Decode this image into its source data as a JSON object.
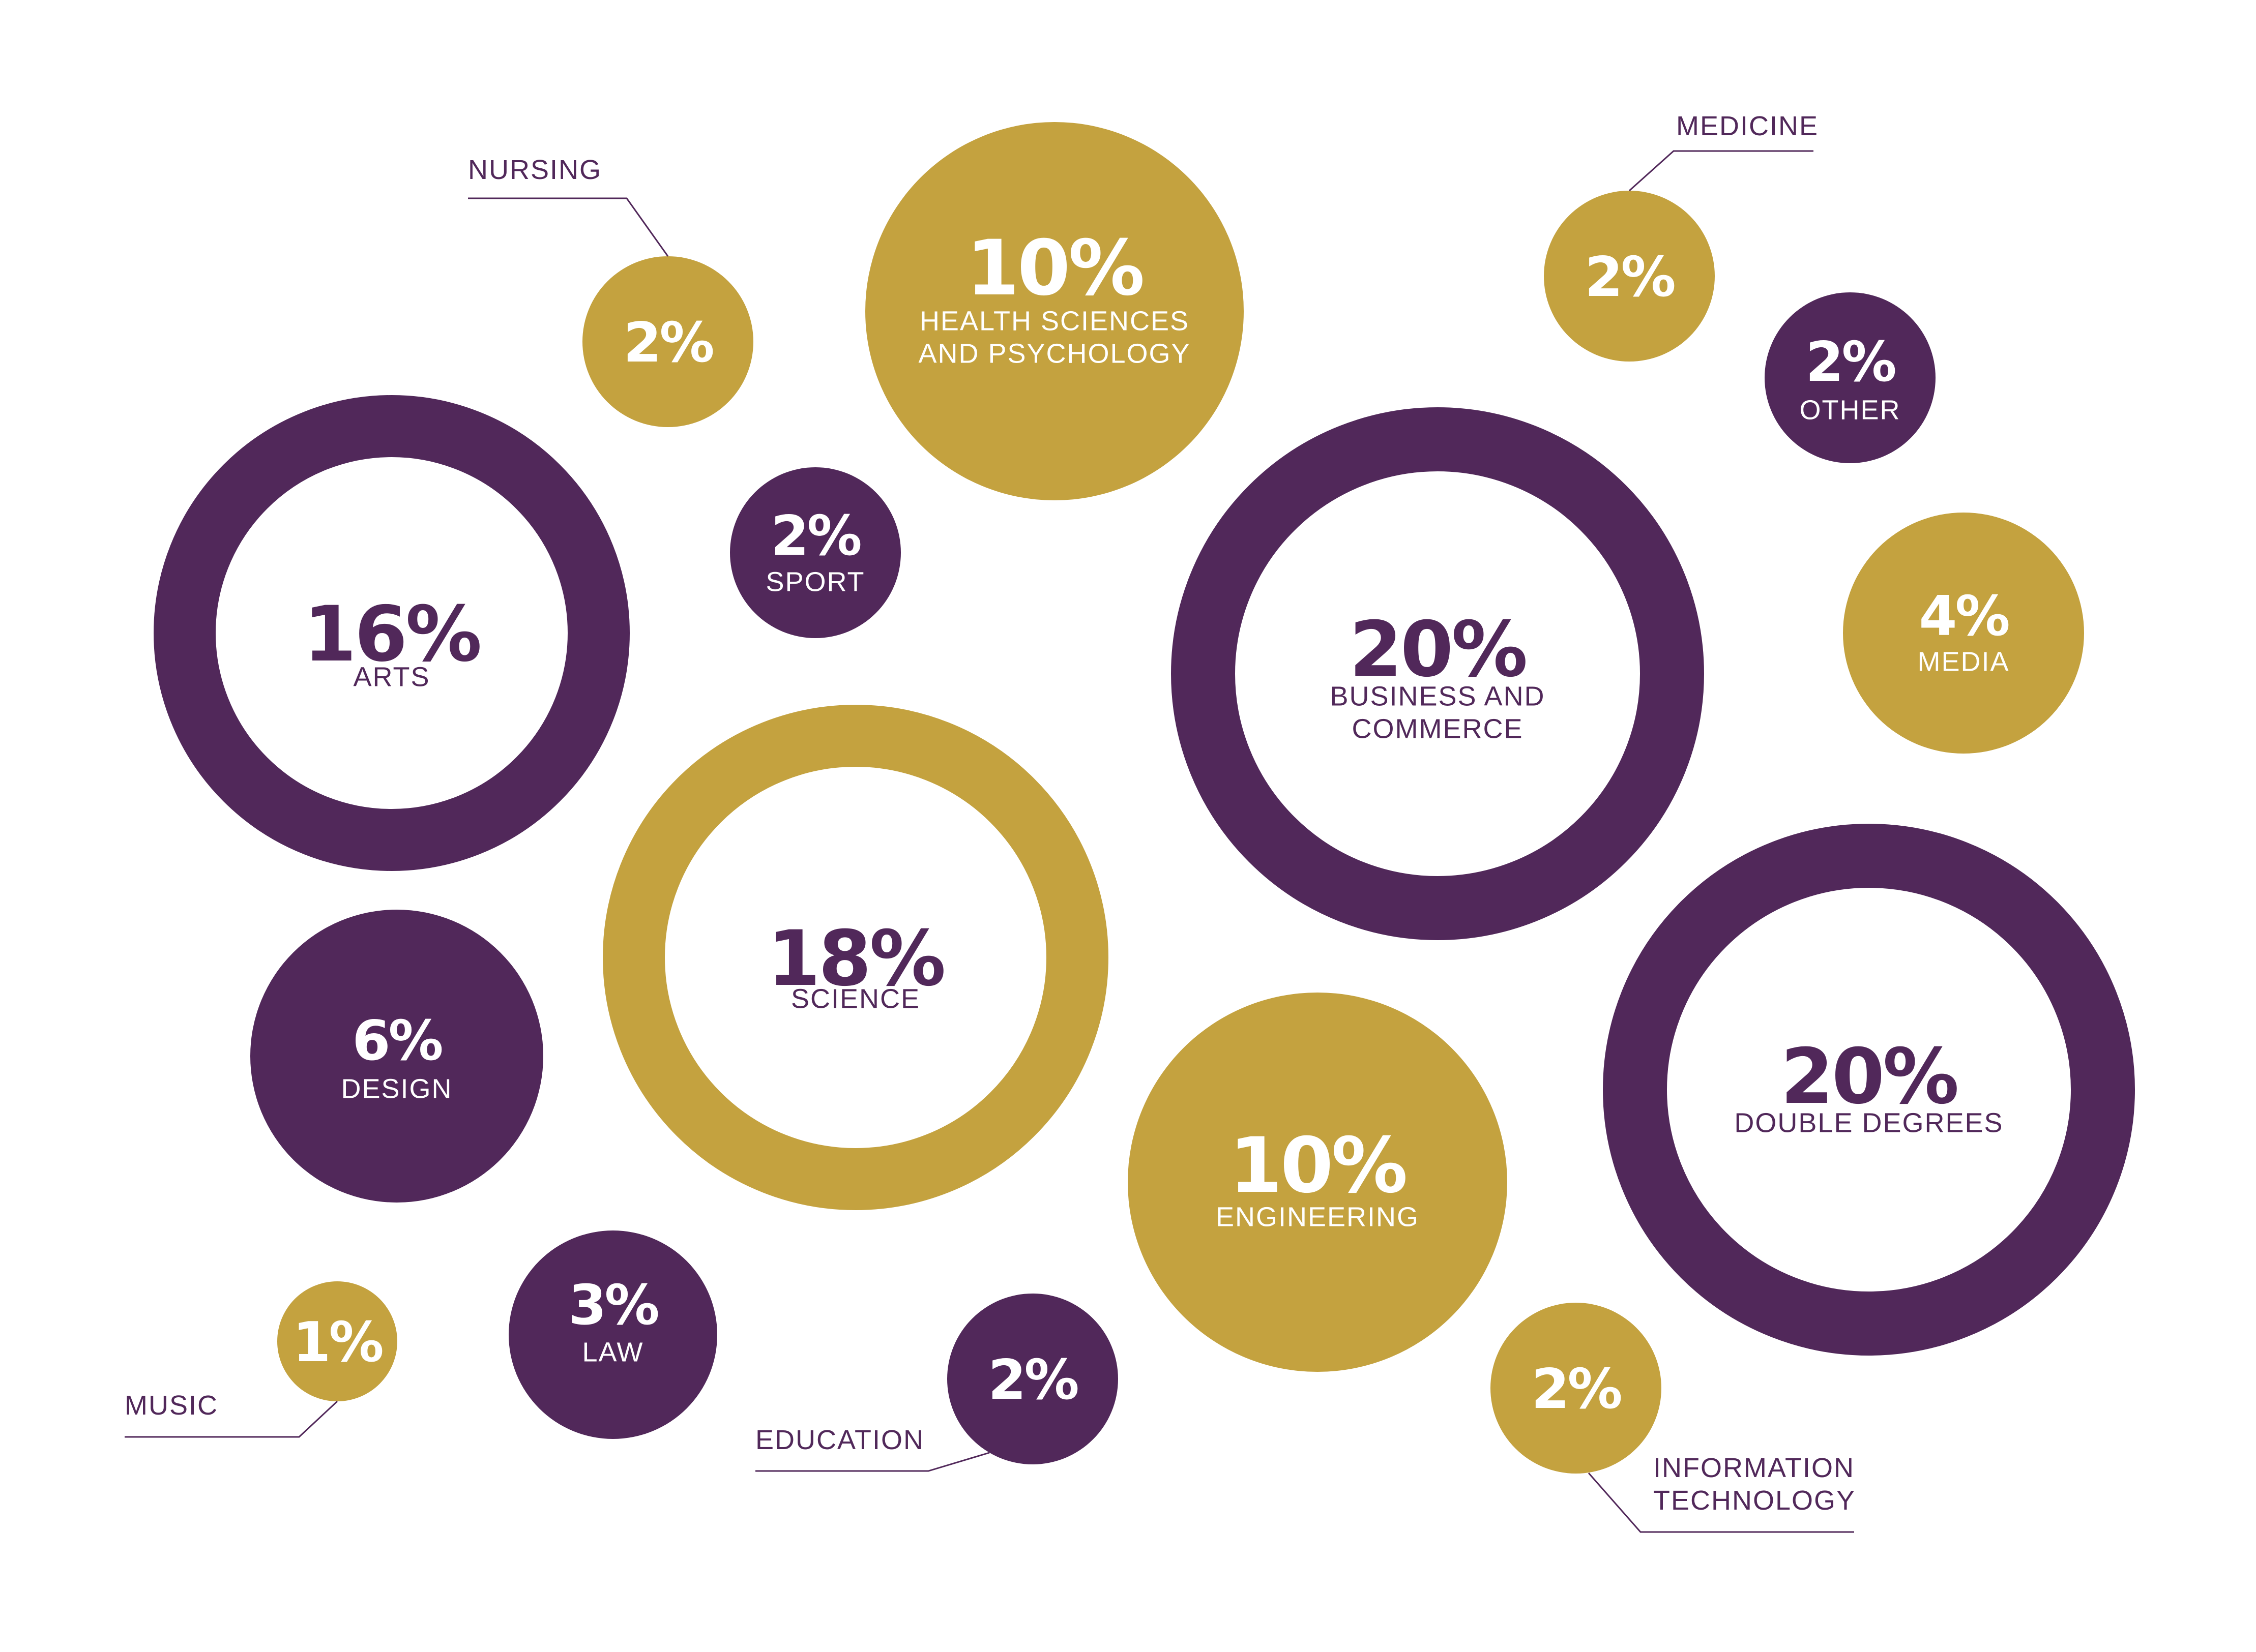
{
  "colors": {
    "purple": "#51285a",
    "gold": "#c4a23f",
    "white": "#ffffff",
    "background": "#ffffff"
  },
  "chart_data": {
    "type": "bubble",
    "unit": "%",
    "items": [
      {
        "value": 16,
        "label": "%",
        "category": "ARTS",
        "color": "purple",
        "style": "ring",
        "label_position": "inside"
      },
      {
        "value": 18,
        "label": "%",
        "category": "SCIENCE",
        "color": "gold",
        "style": "ring",
        "label_position": "inside"
      },
      {
        "value": 20,
        "label": "%",
        "category": "BUSINESS AND COMMERCE",
        "color": "purple",
        "style": "ring",
        "label_position": "inside"
      },
      {
        "value": 20,
        "label": "%",
        "category": "DOUBLE DEGREES",
        "color": "purple",
        "style": "ring",
        "label_position": "inside"
      },
      {
        "value": 10,
        "label": "%",
        "category": "HEALTH SCIENCES AND PSYCHOLOGY",
        "color": "gold",
        "style": "disc",
        "label_position": "inside"
      },
      {
        "value": 10,
        "label": "%",
        "category": "ENGINEERING",
        "color": "gold",
        "style": "disc",
        "label_position": "inside"
      },
      {
        "value": 6,
        "label": "%",
        "category": "DESIGN",
        "color": "purple",
        "style": "disc",
        "label_position": "inside"
      },
      {
        "value": 4,
        "label": "%",
        "category": "MEDIA",
        "color": "gold",
        "style": "disc",
        "label_position": "inside"
      },
      {
        "value": 3,
        "label": "%",
        "category": "LAW",
        "color": "purple",
        "style": "disc",
        "label_position": "inside"
      },
      {
        "value": 2,
        "label": "%",
        "category": "SPORT",
        "color": "purple",
        "style": "disc",
        "label_position": "inside"
      },
      {
        "value": 2,
        "label": "%",
        "category": "OTHER",
        "color": "purple",
        "style": "disc",
        "label_position": "inside"
      },
      {
        "value": 2,
        "label": "%",
        "category": "NURSING",
        "color": "gold",
        "style": "disc",
        "label_position": "callout"
      },
      {
        "value": 2,
        "label": "%",
        "category": "MEDICINE",
        "color": "gold",
        "style": "disc",
        "label_position": "callout"
      },
      {
        "value": 2,
        "label": "%",
        "category": "EDUCATION",
        "color": "purple",
        "style": "disc",
        "label_position": "callout"
      },
      {
        "value": 2,
        "label": "%",
        "category": "INFORMATION TECHNOLOGY",
        "color": "gold",
        "style": "disc",
        "label_position": "callout"
      },
      {
        "value": 1,
        "label": "%",
        "category": "MUSIC",
        "color": "gold",
        "style": "disc",
        "label_position": "callout"
      }
    ]
  }
}
